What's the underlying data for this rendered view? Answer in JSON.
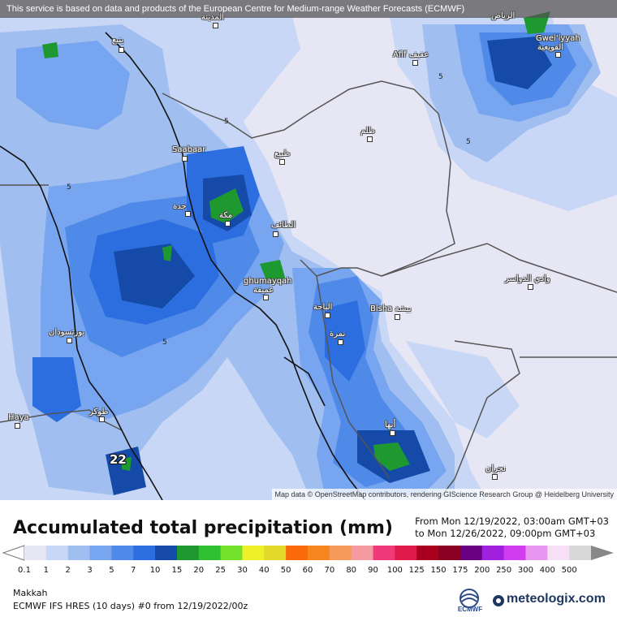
{
  "banner": "This service is based on data and products of the European Centre for Medium-range Weather Forecasts (ECMWF)",
  "attribution": "Map data © OpenStreetMap contributors, rendering GIScience Research Group @ Heidelberg University",
  "map": {
    "places": [
      {
        "id": "medina",
        "label": "المدينة"
      },
      {
        "id": "yanbu",
        "label": "ينبع"
      },
      {
        "id": "afif",
        "label": "Afif عفيف"
      },
      {
        "id": "gweiiyyah",
        "label": "Gwei'iyyah"
      },
      {
        "id": "gweiiyyah_ar",
        "label": "القويعية"
      },
      {
        "id": "riyadh_n",
        "label": "الرياض"
      },
      {
        "id": "zalim",
        "label": "ظلم"
      },
      {
        "id": "saabaar",
        "label": "Saabaar"
      },
      {
        "id": "dhiba",
        "label": "ظبيع"
      },
      {
        "id": "jeddah",
        "label": "جدة"
      },
      {
        "id": "makkah",
        "label": "مكة"
      },
      {
        "id": "taif",
        "label": "الطائف"
      },
      {
        "id": "ghumayqah",
        "label": "ghumayqah"
      },
      {
        "id": "ghumayqah_ar",
        "label": "غميقة"
      },
      {
        "id": "albaha",
        "label": "الباحة"
      },
      {
        "id": "bisha",
        "label": "Bisha بيشة"
      },
      {
        "id": "wadi",
        "label": "وادي الدواسر"
      },
      {
        "id": "namira",
        "label": "نمرة"
      },
      {
        "id": "portsudan",
        "label": "بورتسودان"
      },
      {
        "id": "tokar",
        "label": "طوكر"
      },
      {
        "id": "haya",
        "label": "Haya"
      },
      {
        "id": "abha",
        "label": "أبها"
      },
      {
        "id": "najran",
        "label": "نجران"
      }
    ],
    "isolines": [
      "5",
      "5",
      "5",
      "5",
      "5"
    ],
    "max_value": "22"
  },
  "legend": {
    "title": "Accumulated total precipitation (mm)",
    "from": "From Mon 12/19/2022, 03:00am GMT+03",
    "to": "to Mon 12/26/2022, 09:00pm GMT+03",
    "levels": [
      "0.1",
      "1",
      "2",
      "3",
      "5",
      "7",
      "10",
      "15",
      "20",
      "25",
      "30",
      "40",
      "50",
      "60",
      "70",
      "80",
      "90",
      "100",
      "125",
      "150",
      "175",
      "200",
      "250",
      "300",
      "400",
      "500"
    ],
    "colors": [
      "#e6e6f5",
      "#c8d7f5",
      "#a0bff0",
      "#78a5ef",
      "#508ae8",
      "#2c6ee0",
      "#154aa8",
      "#1e9930",
      "#2fc12f",
      "#72e32a",
      "#eef02a",
      "#e3d82a",
      "#fa6a0a",
      "#f5851e",
      "#f59a5a",
      "#f49aa0",
      "#ee3a78",
      "#e11a4c",
      "#a8001e",
      "#8a0022",
      "#6a0084",
      "#a020e0",
      "#d03cf0",
      "#e896f0",
      "#f5e0f5",
      "#d7d7d7"
    ]
  },
  "footer": {
    "location": "Makkah",
    "model": "ECMWF IFS HRES (10 days) #0 from 12/19/2022/00z",
    "ecmwf": "ECMWF",
    "brand": "meteologix.com"
  }
}
